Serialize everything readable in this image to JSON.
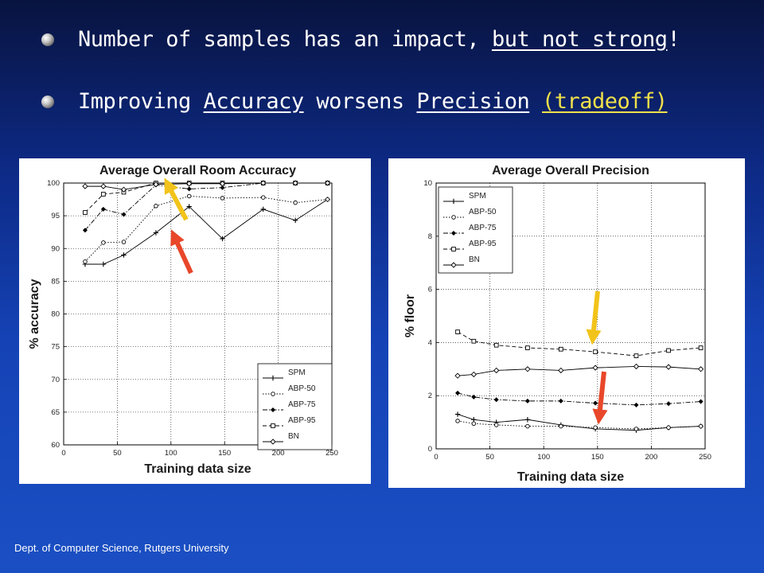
{
  "bullets": [
    {
      "segments": [
        {
          "text": "Number of samples has an impact, ",
          "style": "plain"
        },
        {
          "text": "but not strong",
          "style": "underline"
        },
        {
          "text": "!",
          "style": "plain"
        }
      ]
    },
    {
      "segments": [
        {
          "text": "Improving ",
          "style": "plain"
        },
        {
          "text": "Accuracy",
          "style": "underline"
        },
        {
          "text": " worsens ",
          "style": "plain"
        },
        {
          "text": "Precision",
          "style": "underline"
        },
        {
          "text": " ",
          "style": "plain"
        },
        {
          "text": "(tradeoff)",
          "style": "highlight"
        }
      ]
    }
  ],
  "footer": "Dept. of Computer Science, Rutgers University",
  "colors": {
    "highlight": "#f0e04a",
    "arrow_yellow": "#f2c31a",
    "arrow_red": "#e8472a"
  },
  "chart_data": [
    {
      "type": "line",
      "title": "Average Overall Room Accuracy",
      "xlabel": "Training data size",
      "ylabel": "% accuracy",
      "xlim": [
        0,
        250
      ],
      "ylim": [
        60,
        100
      ],
      "xticks": [
        0,
        50,
        100,
        150,
        200,
        250
      ],
      "yticks": [
        60,
        65,
        70,
        75,
        80,
        85,
        90,
        95,
        100
      ],
      "grid": true,
      "legend_position": "bottom-right",
      "series": [
        {
          "name": "SPM",
          "marker": "plus",
          "dash": "solid",
          "x": [
            20,
            37,
            56,
            86,
            117,
            148,
            186,
            216,
            246
          ],
          "y": [
            87.6,
            87.6,
            89.0,
            92.4,
            96.4,
            91.5,
            96.0,
            94.3,
            97.5
          ]
        },
        {
          "name": "ABP-50",
          "marker": "circle",
          "dash": "dotted",
          "x": [
            20,
            37,
            56,
            86,
            117,
            148,
            186,
            216,
            246
          ],
          "y": [
            88.0,
            90.9,
            91.0,
            96.5,
            98.0,
            97.7,
            97.8,
            97.0,
            97.5
          ]
        },
        {
          "name": "ABP-75",
          "marker": "diamond-filled",
          "dash": "dashdot",
          "x": [
            20,
            37,
            56,
            86,
            117,
            148,
            186,
            216,
            246
          ],
          "y": [
            92.8,
            96.0,
            95.2,
            99.7,
            99.1,
            99.3,
            100,
            100,
            100
          ]
        },
        {
          "name": "ABP-95",
          "marker": "square",
          "dash": "dashed",
          "x": [
            20,
            37,
            56,
            86,
            117,
            148,
            186,
            216,
            246
          ],
          "y": [
            95.5,
            98.3,
            98.6,
            100,
            100,
            100,
            100,
            100,
            100
          ]
        },
        {
          "name": "BN",
          "marker": "diamond",
          "dash": "solid",
          "x": [
            20,
            37,
            56,
            86,
            117,
            148,
            186,
            216,
            246
          ],
          "y": [
            99.5,
            99.5,
            99.0,
            99.8,
            99.9,
            99.9,
            100,
            100,
            100
          ]
        }
      ]
    },
    {
      "type": "line",
      "title": "Average Overall Precision",
      "xlabel": "Training data size",
      "ylabel": "% floor",
      "xlim": [
        0,
        250
      ],
      "ylim": [
        0,
        10
      ],
      "xticks": [
        0,
        50,
        100,
        150,
        200,
        250
      ],
      "yticks": [
        0,
        2,
        4,
        6,
        8,
        10
      ],
      "grid": true,
      "legend_position": "top-left",
      "series": [
        {
          "name": "SPM",
          "marker": "plus",
          "dash": "solid",
          "x": [
            20,
            35,
            56,
            85,
            116,
            148,
            186,
            216,
            246
          ],
          "y": [
            1.3,
            1.1,
            1.0,
            1.1,
            0.9,
            0.75,
            0.7,
            0.8,
            0.85
          ]
        },
        {
          "name": "ABP-50",
          "marker": "circle",
          "dash": "dotted",
          "x": [
            20,
            35,
            56,
            85,
            116,
            148,
            186,
            216,
            246
          ],
          "y": [
            1.05,
            0.95,
            0.9,
            0.85,
            0.85,
            0.8,
            0.75,
            0.8,
            0.85
          ]
        },
        {
          "name": "ABP-75",
          "marker": "diamond-filled",
          "dash": "dashdot",
          "x": [
            20,
            35,
            56,
            85,
            116,
            148,
            186,
            216,
            246
          ],
          "y": [
            2.1,
            1.95,
            1.85,
            1.8,
            1.8,
            1.72,
            1.65,
            1.7,
            1.78
          ]
        },
        {
          "name": "ABP-95",
          "marker": "square",
          "dash": "dashed",
          "x": [
            20,
            35,
            56,
            85,
            116,
            148,
            186,
            216,
            246
          ],
          "y": [
            4.4,
            4.05,
            3.9,
            3.8,
            3.75,
            3.65,
            3.5,
            3.7,
            3.8
          ]
        },
        {
          "name": "BN",
          "marker": "diamond",
          "dash": "solid",
          "x": [
            20,
            35,
            56,
            85,
            116,
            148,
            186,
            216,
            246
          ],
          "y": [
            2.75,
            2.8,
            2.95,
            3.0,
            2.95,
            3.05,
            3.1,
            3.08,
            3.0
          ]
        }
      ]
    }
  ]
}
